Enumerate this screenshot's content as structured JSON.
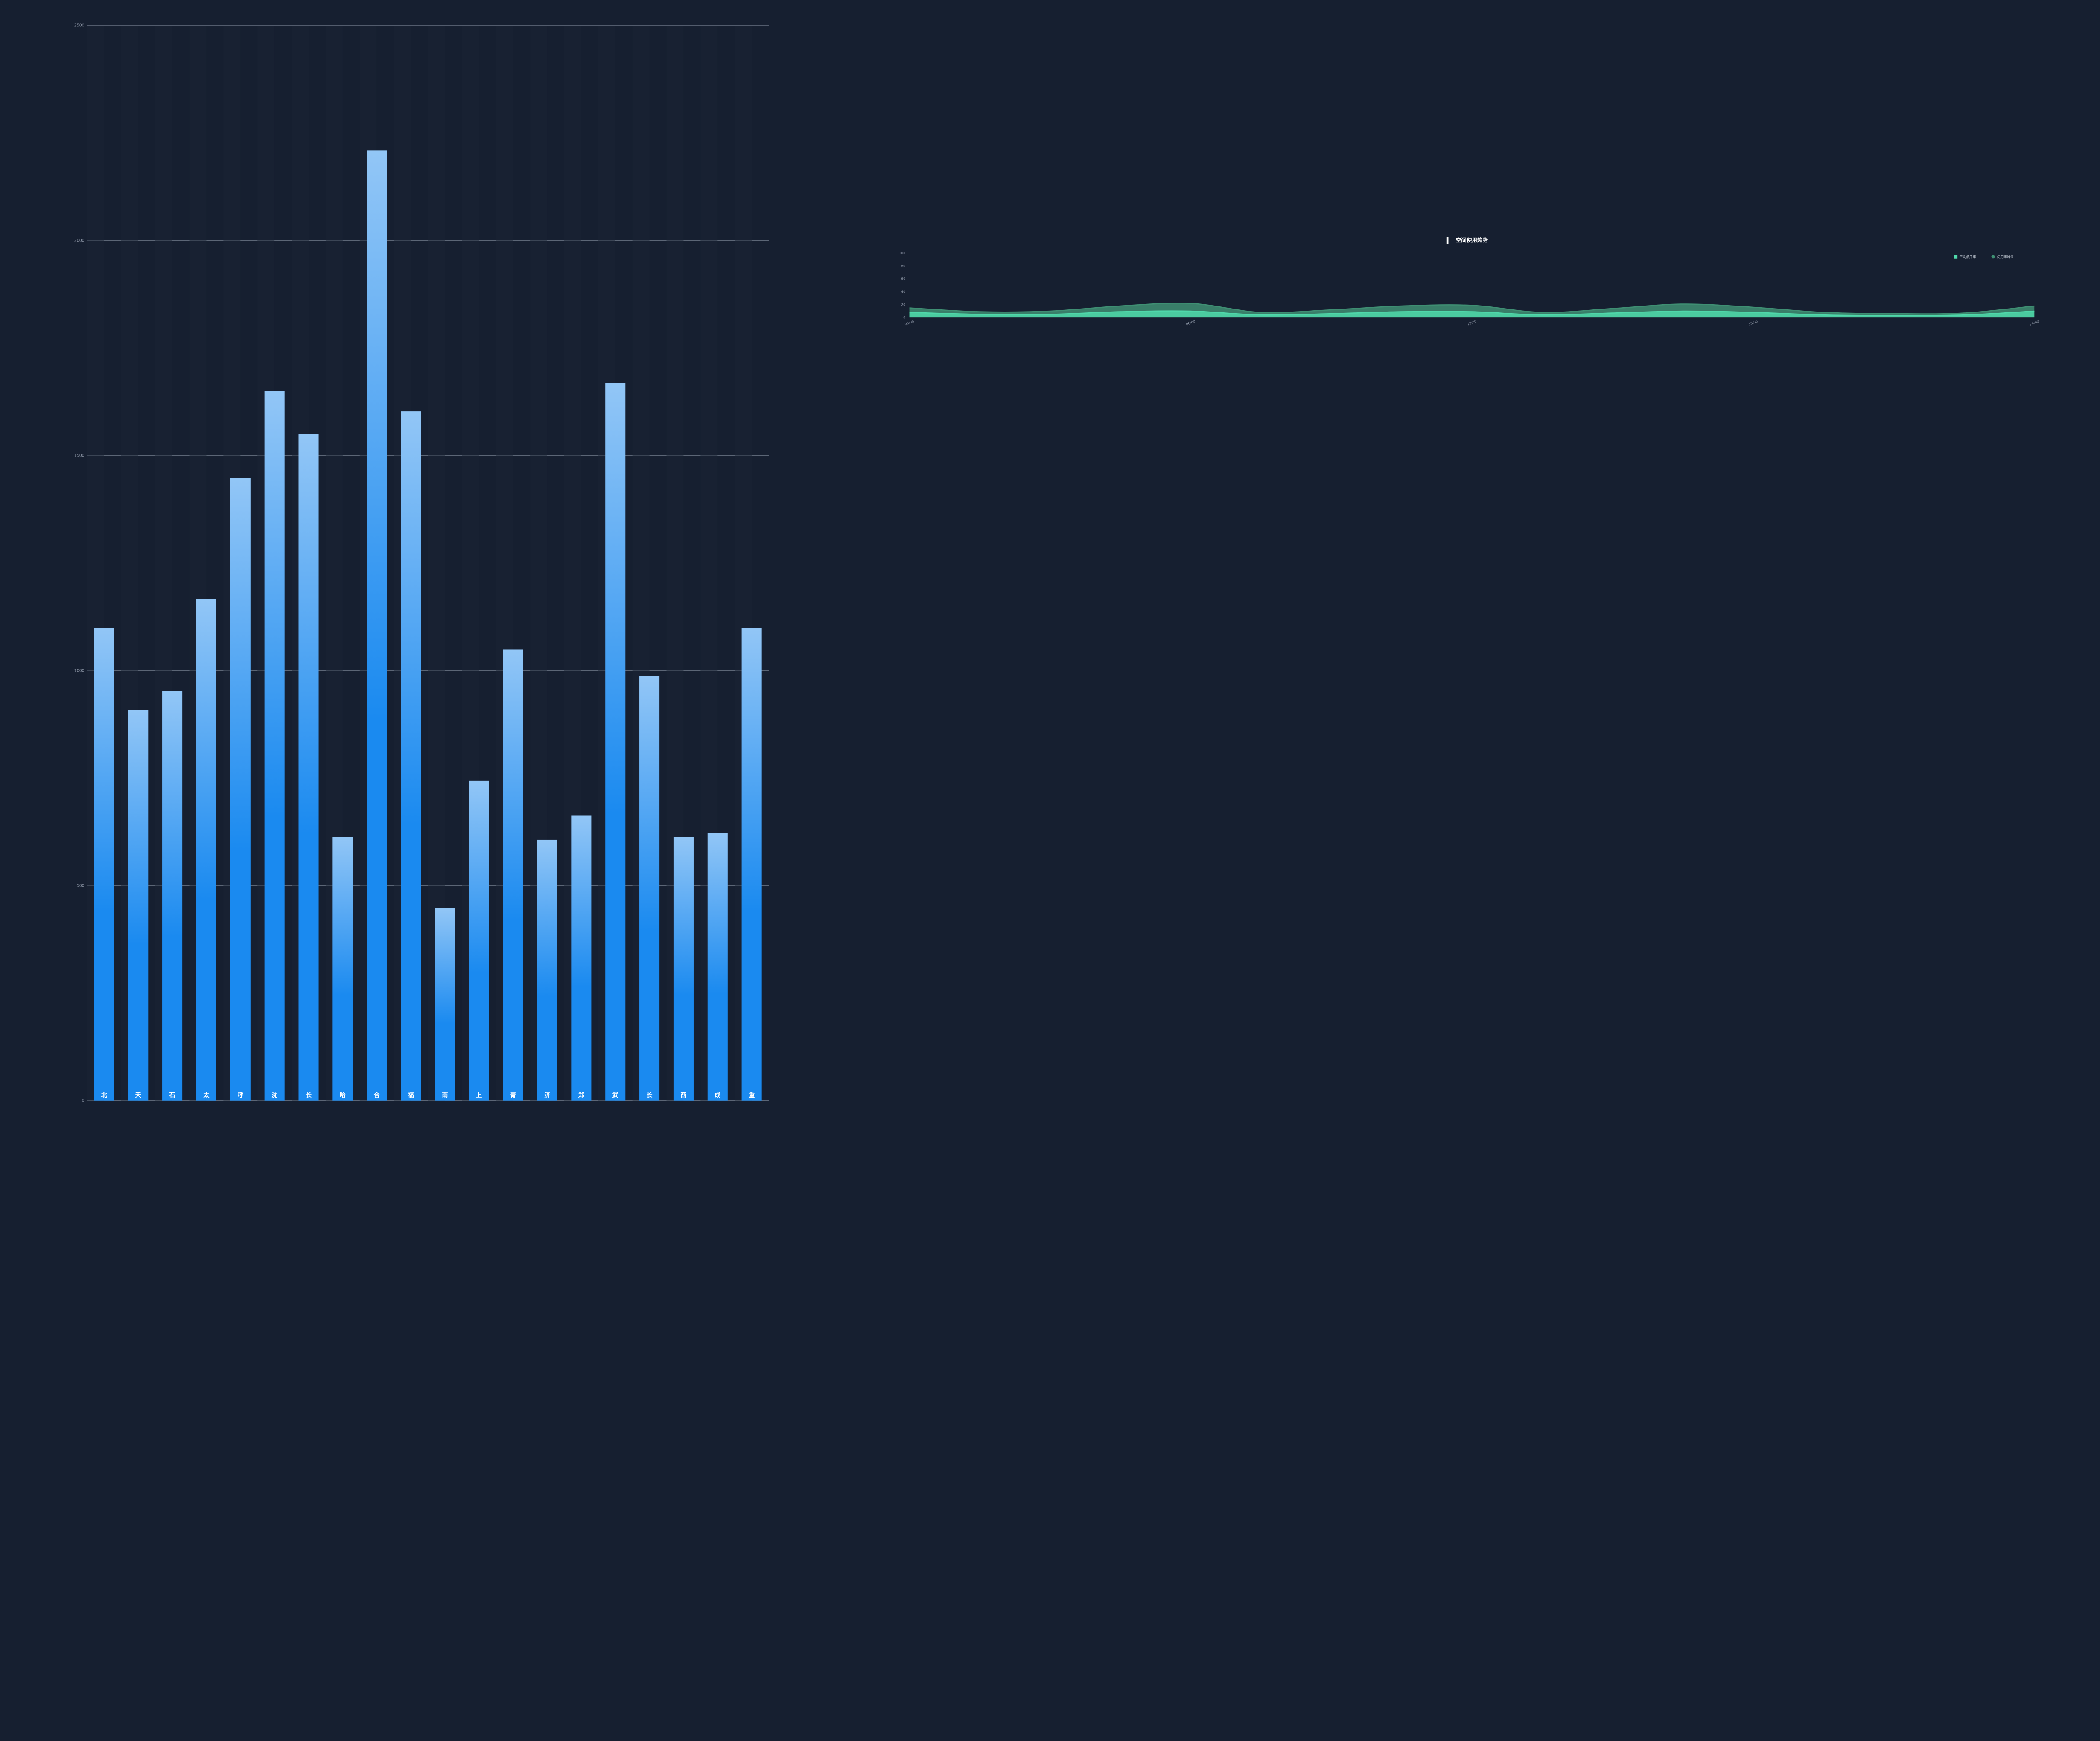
{
  "chart_data": [
    {
      "type": "bar",
      "categories": [
        "北",
        "天",
        "石",
        "太",
        "呼",
        "沈",
        "长",
        "哈",
        "合",
        "福",
        "南",
        "上",
        "青",
        "济",
        "郑",
        "武",
        "长",
        "西",
        "成",
        "重"
      ],
      "values": [
        1100,
        909,
        953,
        1167,
        1448,
        1650,
        1550,
        613,
        2210,
        1603,
        448,
        744,
        1049,
        607,
        663,
        1669,
        987,
        613,
        623,
        1100
      ],
      "color_top": "#92c6f6",
      "color": "#1a8af0",
      "ylim": [
        0,
        2500
      ],
      "yticks": [
        0,
        500,
        1000,
        1500,
        2000,
        2500
      ],
      "grid": true
    },
    {
      "type": "area",
      "title": "空间使用趋势",
      "categories": [
        "00:00",
        null,
        null,
        null,
        "06:00",
        null,
        null,
        null,
        "12:00",
        null,
        null,
        null,
        "18:00",
        null,
        null,
        null,
        "24:00"
      ],
      "series": [
        {
          "name": "使用率峰值",
          "color": "#3f8f73",
          "values": [
            15,
            9,
            10,
            18,
            22,
            8,
            12,
            18,
            19,
            8,
            14,
            21,
            16,
            8,
            6,
            7,
            18
          ]
        },
        {
          "name": "平均使用率",
          "color": "#4fd8aa",
          "values": [
            8,
            5,
            5,
            9,
            10,
            4,
            6,
            9,
            9,
            4,
            7,
            10,
            8,
            4,
            3,
            4,
            10
          ]
        }
      ],
      "ylim": [
        0,
        100
      ],
      "yticks": [
        0,
        20,
        40,
        60,
        80,
        100
      ],
      "legend": "top-right"
    }
  ]
}
